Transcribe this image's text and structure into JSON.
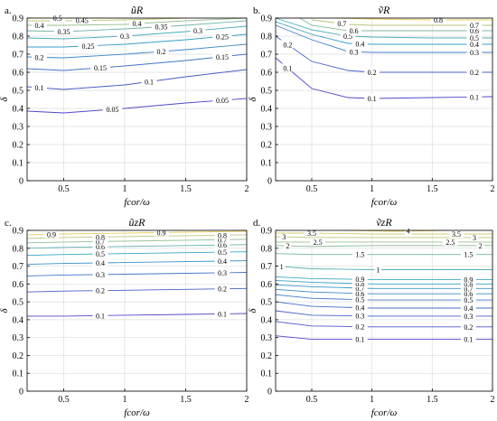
{
  "chart_data": [
    {
      "type": "contour",
      "panel_label": "a.",
      "title": "ũR",
      "xlabel": "fcor/ω",
      "ylabel": "δ",
      "xlim": [
        0.2,
        2.0
      ],
      "ylim": [
        0,
        0.9
      ],
      "xticks": [
        "0.5",
        "1",
        "1.5",
        "2"
      ],
      "yticks": [
        "0",
        "0.1",
        "0.2",
        "0.3",
        "0.4",
        "0.5",
        "0.6",
        "0.7",
        "0.8",
        "0.9"
      ],
      "grid": true,
      "levels": [
        {
          "label": "0.05",
          "x": [
            0.2,
            0.5,
            1.0,
            1.5,
            2.0
          ],
          "y": [
            0.385,
            0.375,
            0.4,
            0.43,
            0.455
          ],
          "labels_at": [
            0.9,
            1.8
          ]
        },
        {
          "label": "0.1",
          "x": [
            0.2,
            0.5,
            1.0,
            1.5,
            2.0
          ],
          "y": [
            0.52,
            0.505,
            0.53,
            0.575,
            0.615
          ],
          "labels_at": [
            0.3,
            1.2
          ]
        },
        {
          "label": "0.15",
          "x": [
            0.2,
            0.5,
            1.0,
            1.5,
            2.0
          ],
          "y": [
            0.62,
            0.61,
            0.635,
            0.665,
            0.7
          ],
          "labels_at": [
            0.8,
            1.8
          ]
        },
        {
          "label": "0.2",
          "x": [
            0.2,
            0.5,
            1.0,
            1.5,
            2.0
          ],
          "y": [
            0.685,
            0.68,
            0.7,
            0.725,
            0.755
          ],
          "labels_at": [
            0.3,
            1.3
          ]
        },
        {
          "label": "0.25",
          "x": [
            0.2,
            0.5,
            1.0,
            1.5,
            2.0
          ],
          "y": [
            0.74,
            0.74,
            0.755,
            0.78,
            0.81
          ],
          "labels_at": [
            0.7,
            1.8
          ]
        },
        {
          "label": "0.3",
          "x": [
            0.2,
            0.5,
            1.0,
            1.5,
            2.0
          ],
          "y": [
            0.79,
            0.785,
            0.8,
            0.825,
            0.855
          ],
          "labels_at": [
            1.0,
            1.6
          ]
        },
        {
          "label": "0.35",
          "x": [
            0.2,
            0.5,
            1.0,
            1.5,
            2.0
          ],
          "y": [
            0.83,
            0.825,
            0.84,
            0.86,
            0.885
          ],
          "labels_at": [
            0.5,
            1.3
          ]
        },
        {
          "label": "0.4",
          "x": [
            0.2,
            0.5,
            1.0,
            1.5,
            2.0
          ],
          "y": [
            0.86,
            0.86,
            0.865,
            0.885,
            0.9
          ],
          "labels_at": [
            0.3,
            1.1
          ]
        },
        {
          "label": "0.45",
          "x": [
            0.2,
            0.5,
            1.0,
            1.5
          ],
          "y": [
            0.885,
            0.885,
            0.89,
            0.9
          ],
          "labels_at": [
            0.65
          ]
        },
        {
          "label": "0.5",
          "x": [
            0.2,
            0.5,
            1.0
          ],
          "y": [
            0.9,
            0.9,
            0.9
          ],
          "labels_at": [
            0.45
          ]
        }
      ]
    },
    {
      "type": "contour",
      "panel_label": "b.",
      "title": "ṽR",
      "xlabel": "fcor/ω",
      "ylabel": "δ",
      "xlim": [
        0.2,
        2.0
      ],
      "ylim": [
        0,
        0.9
      ],
      "xticks": [
        "0.5",
        "1",
        "1.5",
        "2"
      ],
      "yticks": [
        "0",
        "0.1",
        "0.2",
        "0.3",
        "0.4",
        "0.5",
        "0.6",
        "0.7",
        "0.8",
        "0.9"
      ],
      "grid": true,
      "levels": [
        {
          "label": "0.1",
          "x": [
            0.2,
            0.5,
            0.8,
            1.0,
            1.5,
            2.0
          ],
          "y": [
            0.68,
            0.51,
            0.46,
            0.455,
            0.46,
            0.465
          ],
          "labels_at": [
            0.3,
            1.0,
            1.85
          ]
        },
        {
          "label": "0.2",
          "x": [
            0.2,
            0.5,
            0.8,
            1.0,
            1.5,
            2.0
          ],
          "y": [
            0.8,
            0.66,
            0.61,
            0.6,
            0.6,
            0.6
          ],
          "labels_at": [
            0.3,
            1.0,
            1.85
          ]
        },
        {
          "label": "0.3",
          "x": [
            0.2,
            0.5,
            0.8,
            1.0,
            1.5,
            2.0
          ],
          "y": [
            0.86,
            0.78,
            0.715,
            0.71,
            0.71,
            0.71
          ],
          "labels_at": [
            0.85,
            1.85
          ]
        },
        {
          "label": "0.4",
          "x": [
            0.2,
            0.5,
            0.8,
            1.0,
            1.5,
            2.0
          ],
          "y": [
            0.88,
            0.81,
            0.76,
            0.755,
            0.755,
            0.755
          ],
          "labels_at": [
            0.9,
            1.85
          ]
        },
        {
          "label": "0.5",
          "x": [
            0.2,
            0.5,
            0.8,
            1.0,
            1.5,
            2.0
          ],
          "y": [
            0.9,
            0.835,
            0.8,
            0.795,
            0.79,
            0.79
          ],
          "labels_at": [
            0.8,
            1.85
          ]
        },
        {
          "label": "0.6",
          "x": [
            0.4,
            0.5,
            0.8,
            1.0,
            1.5,
            2.0
          ],
          "y": [
            0.9,
            0.86,
            0.83,
            0.83,
            0.83,
            0.83
          ],
          "labels_at": [
            0.85,
            1.85
          ]
        },
        {
          "label": "0.7",
          "x": [
            0.5,
            0.8,
            1.0,
            1.5,
            2.0
          ],
          "y": [
            0.89,
            0.865,
            0.86,
            0.86,
            0.86
          ],
          "labels_at": [
            0.75,
            1.85
          ]
        },
        {
          "label": "0.8",
          "x": [
            0.7,
            1.0,
            1.5,
            2.0
          ],
          "y": [
            0.9,
            0.895,
            0.89,
            0.89
          ],
          "labels_at": [
            1.55
          ]
        }
      ]
    },
    {
      "type": "contour",
      "panel_label": "c.",
      "title": "ũzR",
      "xlabel": "fcor/ω",
      "ylabel": "δ",
      "xlim": [
        0.2,
        2.0
      ],
      "ylim": [
        0,
        0.9
      ],
      "xticks": [
        "0.5",
        "1",
        "1.5",
        "2"
      ],
      "yticks": [
        "0",
        "0.1",
        "0.2",
        "0.3",
        "0.4",
        "0.5",
        "0.6",
        "0.7",
        "0.8",
        "0.9"
      ],
      "grid": true,
      "levels": [
        {
          "label": "0.1",
          "x": [
            0.2,
            0.5,
            1.0,
            1.5,
            2.0
          ],
          "y": [
            0.42,
            0.42,
            0.425,
            0.43,
            0.435
          ],
          "labels_at": [
            0.8,
            1.8
          ]
        },
        {
          "label": "0.2",
          "x": [
            0.2,
            0.5,
            1.0,
            1.5,
            2.0
          ],
          "y": [
            0.555,
            0.56,
            0.565,
            0.57,
            0.575
          ],
          "labels_at": [
            0.8,
            1.8
          ]
        },
        {
          "label": "0.3",
          "x": [
            0.2,
            0.5,
            1.0,
            1.5,
            2.0
          ],
          "y": [
            0.645,
            0.65,
            0.655,
            0.66,
            0.665
          ],
          "labels_at": [
            0.8,
            1.8
          ]
        },
        {
          "label": "0.4",
          "x": [
            0.2,
            0.5,
            1.0,
            1.5,
            2.0
          ],
          "y": [
            0.71,
            0.715,
            0.72,
            0.725,
            0.73
          ],
          "labels_at": [
            0.8,
            1.8
          ]
        },
        {
          "label": "0.5",
          "x": [
            0.2,
            0.5,
            1.0,
            1.5,
            2.0
          ],
          "y": [
            0.76,
            0.765,
            0.77,
            0.775,
            0.78
          ],
          "labels_at": [
            0.8,
            1.8
          ]
        },
        {
          "label": "0.6",
          "x": [
            0.2,
            0.5,
            1.0,
            1.5,
            2.0
          ],
          "y": [
            0.8,
            0.805,
            0.81,
            0.815,
            0.82
          ],
          "labels_at": [
            0.8,
            1.8
          ]
        },
        {
          "label": "0.7",
          "x": [
            0.2,
            0.5,
            1.0,
            1.5,
            2.0
          ],
          "y": [
            0.83,
            0.835,
            0.84,
            0.845,
            0.85
          ],
          "labels_at": [
            0.8,
            1.8
          ]
        },
        {
          "label": "0.8",
          "x": [
            0.2,
            0.5,
            1.0,
            1.5,
            2.0
          ],
          "y": [
            0.855,
            0.86,
            0.865,
            0.87,
            0.875
          ],
          "labels_at": [
            0.8,
            1.8
          ]
        },
        {
          "label": "0.9",
          "x": [
            0.2,
            0.5,
            1.0,
            1.5,
            2.0
          ],
          "y": [
            0.875,
            0.88,
            0.885,
            0.89,
            0.895
          ],
          "labels_at": [
            0.4,
            1.3
          ]
        }
      ]
    },
    {
      "type": "contour",
      "panel_label": "d.",
      "title": "ṽzR",
      "xlabel": "fcor/ω",
      "ylabel": "δ",
      "xlim": [
        0.2,
        2.0
      ],
      "ylim": [
        0,
        0.9
      ],
      "xticks": [
        "0.5",
        "1",
        "1.5",
        "2"
      ],
      "yticks": [
        "0",
        "0.1",
        "0.2",
        "0.3",
        "0.4",
        "0.5",
        "0.6",
        "0.7",
        "0.8",
        "0.9"
      ],
      "grid": true,
      "levels": [
        {
          "label": "0.1",
          "x": [
            0.2,
            0.5,
            1.0,
            1.5,
            2.0
          ],
          "y": [
            0.31,
            0.29,
            0.29,
            0.29,
            0.29
          ],
          "labels_at": [
            0.9,
            1.8
          ]
        },
        {
          "label": "0.2",
          "x": [
            0.2,
            0.5,
            1.0,
            1.5,
            2.0
          ],
          "y": [
            0.39,
            0.365,
            0.36,
            0.36,
            0.36
          ],
          "labels_at": [
            0.9,
            1.8
          ]
        },
        {
          "label": "0.3",
          "x": [
            0.2,
            0.5,
            1.0,
            1.5,
            2.0
          ],
          "y": [
            0.45,
            0.425,
            0.42,
            0.42,
            0.42
          ],
          "labels_at": [
            0.9,
            1.8
          ]
        },
        {
          "label": "0.4",
          "x": [
            0.2,
            0.5,
            1.0,
            1.5,
            2.0
          ],
          "y": [
            0.5,
            0.475,
            0.465,
            0.465,
            0.465
          ],
          "labels_at": [
            0.9,
            1.8
          ]
        },
        {
          "label": "0.5",
          "x": [
            0.2,
            0.5,
            1.0,
            1.5,
            2.0
          ],
          "y": [
            0.54,
            0.52,
            0.51,
            0.51,
            0.51
          ],
          "labels_at": [
            0.9,
            1.8
          ]
        },
        {
          "label": "0.6",
          "x": [
            0.2,
            0.5,
            1.0,
            1.5,
            2.0
          ],
          "y": [
            0.57,
            0.555,
            0.545,
            0.545,
            0.545
          ],
          "labels_at": [
            0.9,
            1.8
          ]
        },
        {
          "label": "0.7",
          "x": [
            0.2,
            0.5,
            1.0,
            1.5,
            2.0
          ],
          "y": [
            0.595,
            0.585,
            0.575,
            0.575,
            0.575
          ],
          "labels_at": [
            0.9,
            1.8
          ]
        },
        {
          "label": "0.8",
          "x": [
            0.2,
            0.5,
            1.0,
            1.5,
            2.0
          ],
          "y": [
            0.62,
            0.61,
            0.6,
            0.6,
            0.6
          ],
          "labels_at": [
            0.9,
            1.8
          ]
        },
        {
          "label": "0.9",
          "x": [
            0.2,
            0.5,
            1.0,
            1.5,
            2.0
          ],
          "y": [
            0.64,
            0.63,
            0.625,
            0.625,
            0.625
          ],
          "labels_at": [
            0.9,
            1.8
          ]
        },
        {
          "label": "1",
          "x": [
            0.2,
            0.5,
            1.0,
            1.5,
            2.0
          ],
          "y": [
            0.7,
            0.685,
            0.68,
            0.68,
            0.68
          ],
          "labels_at": [
            0.25,
            1.05
          ]
        },
        {
          "label": "1.5",
          "x": [
            0.2,
            0.5,
            1.0,
            1.5,
            2.0
          ],
          "y": [
            0.77,
            0.765,
            0.765,
            0.765,
            0.765
          ],
          "labels_at": [
            0.9,
            1.8
          ]
        },
        {
          "label": "2",
          "x": [
            0.2,
            0.5,
            1.0,
            1.5,
            2.0
          ],
          "y": [
            0.815,
            0.81,
            0.815,
            0.815,
            0.815
          ],
          "labels_at": [
            0.3,
            1.9
          ]
        },
        {
          "label": "2.5",
          "x": [
            0.2,
            0.5,
            1.0,
            1.5,
            2.0
          ],
          "y": [
            0.835,
            0.835,
            0.835,
            0.835,
            0.835
          ],
          "labels_at": [
            0.55,
            1.65
          ]
        },
        {
          "label": "3",
          "x": [
            0.2,
            0.5,
            1.0,
            1.5,
            2.0
          ],
          "y": [
            0.865,
            0.86,
            0.86,
            0.86,
            0.86
          ],
          "labels_at": [
            0.27,
            1.85
          ]
        },
        {
          "label": "3.5",
          "x": [
            0.2,
            0.5,
            1.0,
            1.5,
            2.0
          ],
          "y": [
            0.885,
            0.885,
            0.88,
            0.88,
            0.88
          ],
          "labels_at": [
            0.5,
            1.7
          ]
        },
        {
          "label": "4",
          "x": [
            0.8,
            1.2,
            1.6
          ],
          "y": [
            0.9,
            0.895,
            0.9
          ],
          "labels_at": [
            1.3
          ]
        }
      ]
    }
  ],
  "colors": {
    "contour_low": "#5048c8",
    "contour_mid": "#35a8c8",
    "contour_high": "#e8d060",
    "grid": "#dddddd",
    "axes": "#000000"
  }
}
